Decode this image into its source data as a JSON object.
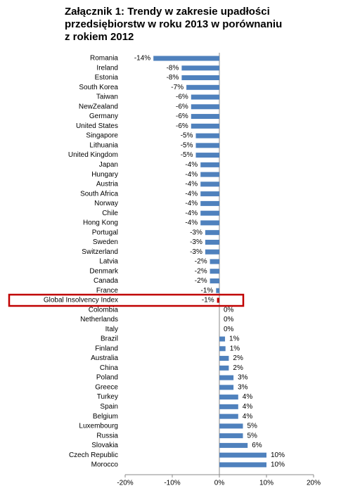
{
  "chart_data": {
    "type": "bar",
    "orientation": "horizontal",
    "title": "Załącznik 1: Trendy w zakresie upadłości\nprzedsiębiorstw w roku 2013 w porównaniu\nz rokiem 2012",
    "categories": [
      "Romania",
      "Ireland",
      "Estonia",
      "South Korea",
      "Taiwan",
      "NewZealand",
      "Germany",
      "United States",
      "Singapore",
      "Lithuania",
      "United Kingdom",
      "Japan",
      "Hungary",
      "Austria",
      "South Africa",
      "Norway",
      "Chile",
      "Hong Kong",
      "Portugal",
      "Sweden",
      "Switzerland",
      "Latvia",
      "Denmark",
      "Canada",
      "France",
      "Global Insolvency Index",
      "Colombia",
      "Netherlands",
      "Italy",
      "Brazil",
      "Finland",
      "Australia",
      "China",
      "Poland",
      "Greece",
      "Turkey",
      "Spain",
      "Belgium",
      "Luxembourg",
      "Russia",
      "Slovakia",
      "Czech Republic",
      "Morocco"
    ],
    "values": [
      -14,
      -8,
      -8,
      -7,
      -6,
      -6,
      -6,
      -6,
      -5,
      -5,
      -5,
      -4,
      -4,
      -4,
      -4,
      -4,
      -4,
      -4,
      -3,
      -3,
      -3,
      -2,
      -2,
      -2,
      -0.7,
      -0.5,
      0,
      0,
      0,
      1.2,
      1.3,
      2,
      2,
      3,
      3,
      4,
      4,
      4,
      5,
      5,
      6,
      10,
      10
    ],
    "value_labels": [
      "-14%",
      "-8%",
      "-8%",
      "-7%",
      "-6%",
      "-6%",
      "-6%",
      "-6%",
      "-5%",
      "-5%",
      "-5%",
      "-4%",
      "-4%",
      "-4%",
      "-4%",
      "-4%",
      "-4%",
      "-4%",
      "-3%",
      "-3%",
      "-3%",
      "-2%",
      "-2%",
      "-2%",
      "-1%",
      "-1%",
      "0%",
      "0%",
      "0%",
      "1%",
      "1%",
      "2%",
      "2%",
      "3%",
      "3%",
      "4%",
      "4%",
      "4%",
      "5%",
      "5%",
      "6%",
      "10%",
      "10%"
    ],
    "color": "#4f81bd",
    "highlight_index": 25,
    "highlight_color": "#c00000",
    "xlim": [
      -20,
      20
    ],
    "xticks": [
      {
        "value": -20,
        "label": "-20%"
      },
      {
        "value": -10,
        "label": "-10%"
      },
      {
        "value": 0,
        "label": "0%"
      },
      {
        "value": 10,
        "label": "10%"
      },
      {
        "value": 20,
        "label": "20%"
      }
    ]
  }
}
